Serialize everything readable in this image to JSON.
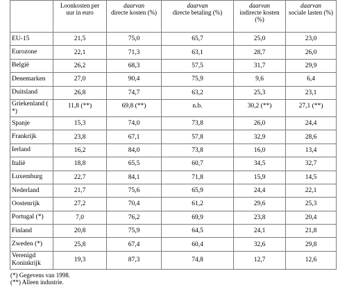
{
  "table": {
    "headers": [
      {
        "lead": "",
        "rest": ""
      },
      {
        "lead": "",
        "rest": "Loonkosten per uur in euro"
      },
      {
        "lead": "daarvan",
        "rest": "directe kosten (%)"
      },
      {
        "lead": "daarvan",
        "rest": "directe betaling (%)"
      },
      {
        "lead": "daarvan",
        "rest": "indirecte kosten (%)"
      },
      {
        "lead": "daarvan",
        "rest": "sociale lasten (%)"
      }
    ],
    "rows": [
      {
        "country": "EU-15",
        "v": [
          "21,5",
          "75,0",
          "65,7",
          "25,0",
          "23,0"
        ]
      },
      {
        "country": "Eurozone",
        "v": [
          "22,1",
          "71,3",
          "63,1",
          "28,7",
          "26,0"
        ]
      },
      {
        "country": "België",
        "v": [
          "26,2",
          "68,3",
          "57,5",
          "31,7",
          "29,9"
        ]
      },
      {
        "country": "Denemarken",
        "v": [
          "27,0",
          "90,4",
          "75,9",
          "9,6",
          "6,4"
        ]
      },
      {
        "country": "Duitsland",
        "v": [
          "26,8",
          "74,7",
          "63,2",
          "25,3",
          "23,1"
        ]
      },
      {
        "country": "Griekenland ( *)",
        "v": [
          "11,8 (**)",
          "69,8 (**)",
          "n.b.",
          "30,2 (**)",
          "27,1 (**)"
        ]
      },
      {
        "country": "Spanje",
        "v": [
          "15,3",
          "74,0",
          "73,8",
          "26,0",
          "24,4"
        ]
      },
      {
        "country": "Frankrijk",
        "v": [
          "23,8",
          "67,1",
          "57,8",
          "32,9",
          "28,6"
        ]
      },
      {
        "country": "Ierland",
        "v": [
          "16,2",
          "84,0",
          "73,8",
          "16,0",
          "13,4"
        ]
      },
      {
        "country": "Italië",
        "v": [
          "18,8",
          "65,5",
          "60,7",
          "34,5",
          "32,7"
        ]
      },
      {
        "country": "Luxemburg",
        "v": [
          "22,7",
          "84,1",
          "71,8",
          "15,9",
          "14,5"
        ]
      },
      {
        "country": "Nederland",
        "v": [
          "21,7",
          "75,6",
          "65,9",
          "24,4",
          "22,1"
        ]
      },
      {
        "country": "Oostenrijk",
        "v": [
          "27,2",
          "70,4",
          "61,2",
          "29,6",
          "25,3"
        ]
      },
      {
        "country": "Portugal (*)",
        "v": [
          "7,0",
          "76,2",
          "69,9",
          "23,8",
          "20,4"
        ]
      },
      {
        "country": "Finland",
        "v": [
          "20,8",
          "75,9",
          "64,5",
          "24,1",
          "21,8"
        ]
      },
      {
        "country": "Zweden (*)",
        "v": [
          "25,8",
          "67,4",
          "60,4",
          "32,6",
          "29,8"
        ]
      },
      {
        "country": "Verenigd Koninkrijk",
        "v": [
          "19,3",
          "87,3",
          "74,8",
          "12,7",
          "12,6"
        ]
      }
    ]
  },
  "notes": [
    "(*) Gegevens van 1998.",
    "(**) Alleen industrie."
  ]
}
